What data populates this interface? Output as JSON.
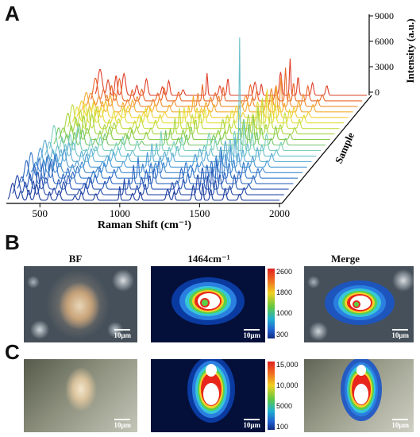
{
  "panels": {
    "a": "A",
    "b": "B",
    "c": "C"
  },
  "chart_data": {
    "type": "line",
    "xlabel": "Raman Shift (cm⁻¹)",
    "ylabel": "Intensity (a.u.)",
    "zlabel": "Sample",
    "x_ticks": [
      "500",
      "1000",
      "1500",
      "2000"
    ],
    "intensity_ticks": [
      "9000",
      "6000",
      "3000",
      "0"
    ],
    "xlim": [
      300,
      2000
    ],
    "ylim": [
      0,
      9000
    ],
    "series_count": 20,
    "series_colors": [
      "#1f3e9e",
      "#2549a8",
      "#2a57b4",
      "#2f66bf",
      "#3677c8",
      "#3f88cf",
      "#4d9bd4",
      "#5eaed4",
      "#6cc0cc",
      "#7bcfbd",
      "#72c56a",
      "#8ccd4c",
      "#a8d645",
      "#c5dc3f",
      "#e4df3b",
      "#f2cf36",
      "#f4ad32",
      "#ef8a2f",
      "#e9662c",
      "#de3f2a"
    ]
  },
  "row_b": {
    "titles": {
      "bf": "BF",
      "raman": "1464cm⁻¹",
      "merge": "Merge"
    },
    "colorbar_ticks": [
      "2600",
      "1800",
      "1000",
      "300"
    ],
    "scalebar": "10μm"
  },
  "row_c": {
    "colorbar_ticks": [
      "15,000",
      "10,000",
      "5000",
      "100"
    ],
    "scalebar": "10μm"
  }
}
